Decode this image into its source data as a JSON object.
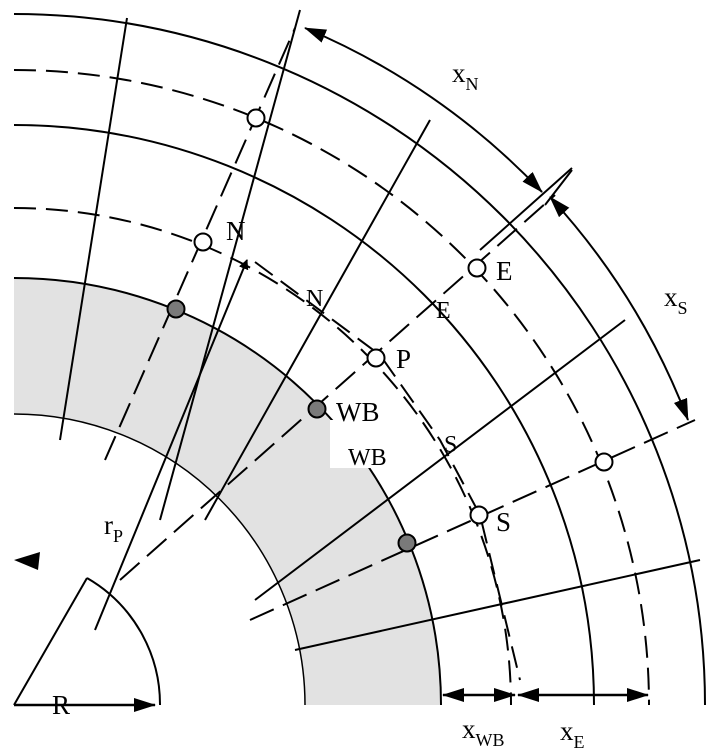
{
  "colors": {
    "background": "#ffffff",
    "ink": "#000000",
    "wall_fill": "#e2e2e2",
    "boundary_node_fill": "#7a7a7a",
    "open_node_fill": "#ffffff"
  },
  "labels": {
    "node_N": "N",
    "node_E": "E",
    "node_P": "P",
    "node_S": "S",
    "node_WB": "WB",
    "face_N": "N",
    "face_E": "E",
    "face_S": "S",
    "face_WB": "WB",
    "xN": {
      "base": "x",
      "sub": "N"
    },
    "xS": {
      "base": "x",
      "sub": "S"
    },
    "xWB": {
      "base": "x",
      "sub": "WB"
    },
    "xE": {
      "base": "x",
      "sub": "E"
    },
    "rP": {
      "base": "r",
      "sub": "P"
    },
    "R": "R"
  }
}
